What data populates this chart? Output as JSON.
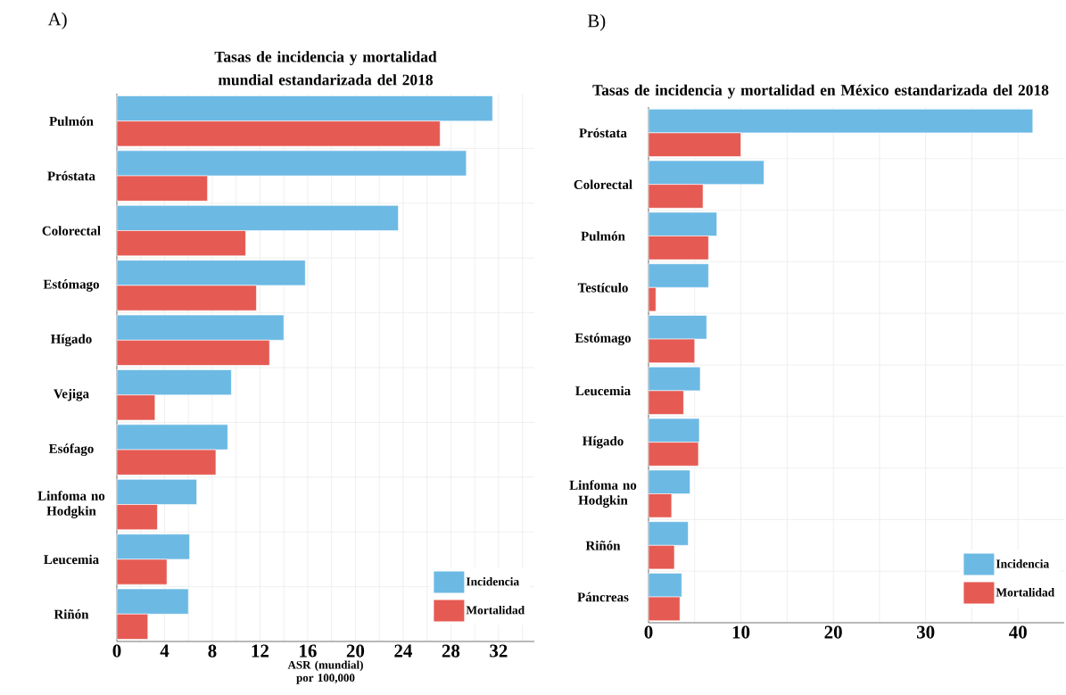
{
  "chart_data": [
    {
      "type": "bar",
      "orientation": "horizontal",
      "title": "Tasas de incidencia y mortalidad mundial estandarizada del 2018",
      "xlabel": "ASR (mundial) por 100,000",
      "annotations": [
        "A)"
      ],
      "categories": [
        "Pulmón",
        "Próstata",
        "Colorectal",
        "Estómago",
        "Hígado",
        "Vejiga",
        "Esófago",
        "Linfoma no Hodgkin",
        "Leucemia",
        "Riñón"
      ],
      "series": [
        {
          "name": "Incidencia",
          "color": "#6cb9e4",
          "values": [
            31.5,
            29.3,
            23.6,
            15.8,
            14.0,
            9.6,
            9.3,
            6.7,
            6.1,
            6.0
          ]
        },
        {
          "name": "Mortalidad",
          "color": "#e55a52",
          "values": [
            27.1,
            7.6,
            10.8,
            11.7,
            12.8,
            3.2,
            8.3,
            3.4,
            4.2,
            2.6
          ]
        }
      ],
      "xlim": [
        0,
        35
      ],
      "xticks": [
        0,
        {
          "value": 2,
          "label": null
        },
        4,
        {
          "value": 6,
          "label": null
        },
        8,
        {
          "value": 10,
          "label": null
        },
        12,
        {
          "value": 14,
          "label": null
        },
        16,
        {
          "value": 18,
          "label": null
        },
        20,
        {
          "value": 22,
          "label": null
        },
        24,
        {
          "value": 26,
          "label": null
        },
        28,
        {
          "value": 30,
          "label": null
        },
        32,
        {
          "value": 34,
          "label": null
        }
      ],
      "grid": true,
      "legend": "bottom right"
    },
    {
      "type": "bar",
      "orientation": "horizontal",
      "title": "Tasas de incidencia y mortalidad en México estandarizada del 2018",
      "annotations": [
        "B)"
      ],
      "categories": [
        "Próstata",
        "Colorectal",
        "Pulmón",
        "Testículo",
        "Estómago",
        "Leucemia",
        "Hígado",
        "Linfoma no Hodgkin",
        "Riñón",
        "Páncreas"
      ],
      "series": [
        {
          "name": "Incidencia",
          "color": "#6cb9e4",
          "values": [
            41.6,
            12.5,
            7.4,
            6.5,
            6.3,
            5.6,
            5.5,
            4.5,
            4.3,
            3.6
          ]
        },
        {
          "name": "Mortalidad",
          "color": "#e55a52",
          "values": [
            10.0,
            5.9,
            6.5,
            0.8,
            5.0,
            3.8,
            5.4,
            2.5,
            2.8,
            3.4
          ]
        }
      ],
      "xlim": [
        0,
        45
      ],
      "xticks": [
        0,
        {
          "value": 5,
          "label": null
        },
        10,
        {
          "value": 15,
          "label": null
        },
        20,
        {
          "value": 25,
          "label": null
        },
        30,
        {
          "value": 35,
          "label": null
        },
        40
      ],
      "grid": true,
      "legend": "bottom right"
    }
  ]
}
